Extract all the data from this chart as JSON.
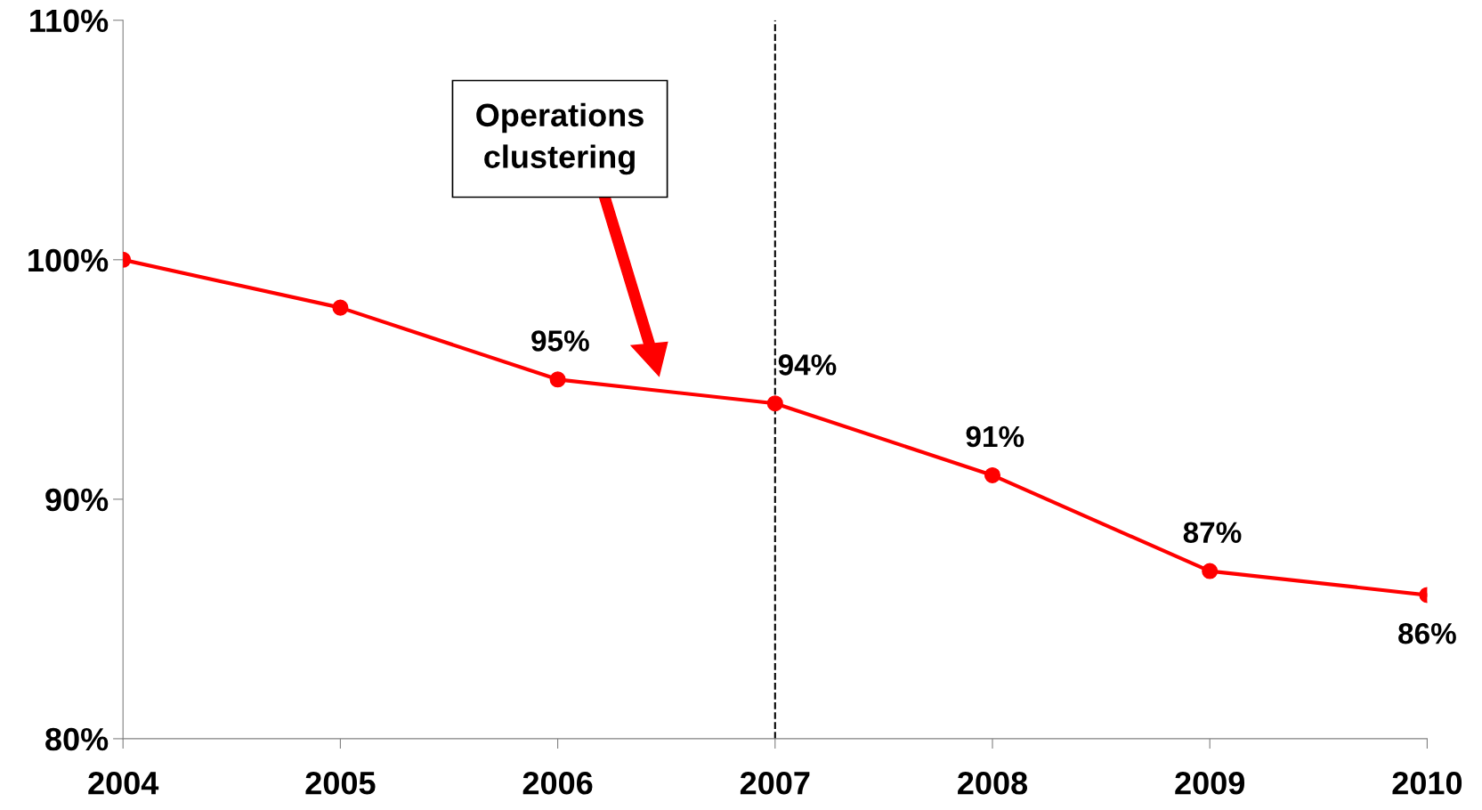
{
  "chart_data": {
    "type": "line",
    "x": [
      2004,
      2005,
      2006,
      2007,
      2008,
      2009,
      2010
    ],
    "series": [
      {
        "color": "#ff0000",
        "values": [
          100,
          98,
          95,
          94,
          91,
          87,
          86
        ],
        "value_labels": [
          null,
          null,
          "95%",
          "94%",
          "91%",
          "87%",
          "86%"
        ]
      }
    ],
    "xlim": [
      2004,
      2010
    ],
    "xticks": [
      2004,
      2005,
      2006,
      2007,
      2008,
      2009,
      2010
    ],
    "ylim": [
      80,
      110
    ],
    "yticks": [
      {
        "value": 80,
        "label": "80%"
      },
      {
        "value": 90,
        "label": "90%"
      },
      {
        "value": 100,
        "label": "100%"
      },
      {
        "value": 110,
        "label": "110%"
      }
    ],
    "ref_lines": [
      {
        "axis": "x",
        "value": 2007,
        "color": "#000000",
        "line_style": "dashed"
      }
    ],
    "annotations": [
      "Operations\nclustering"
    ],
    "marker": "circle",
    "line_style": "solid",
    "grid": false
  }
}
